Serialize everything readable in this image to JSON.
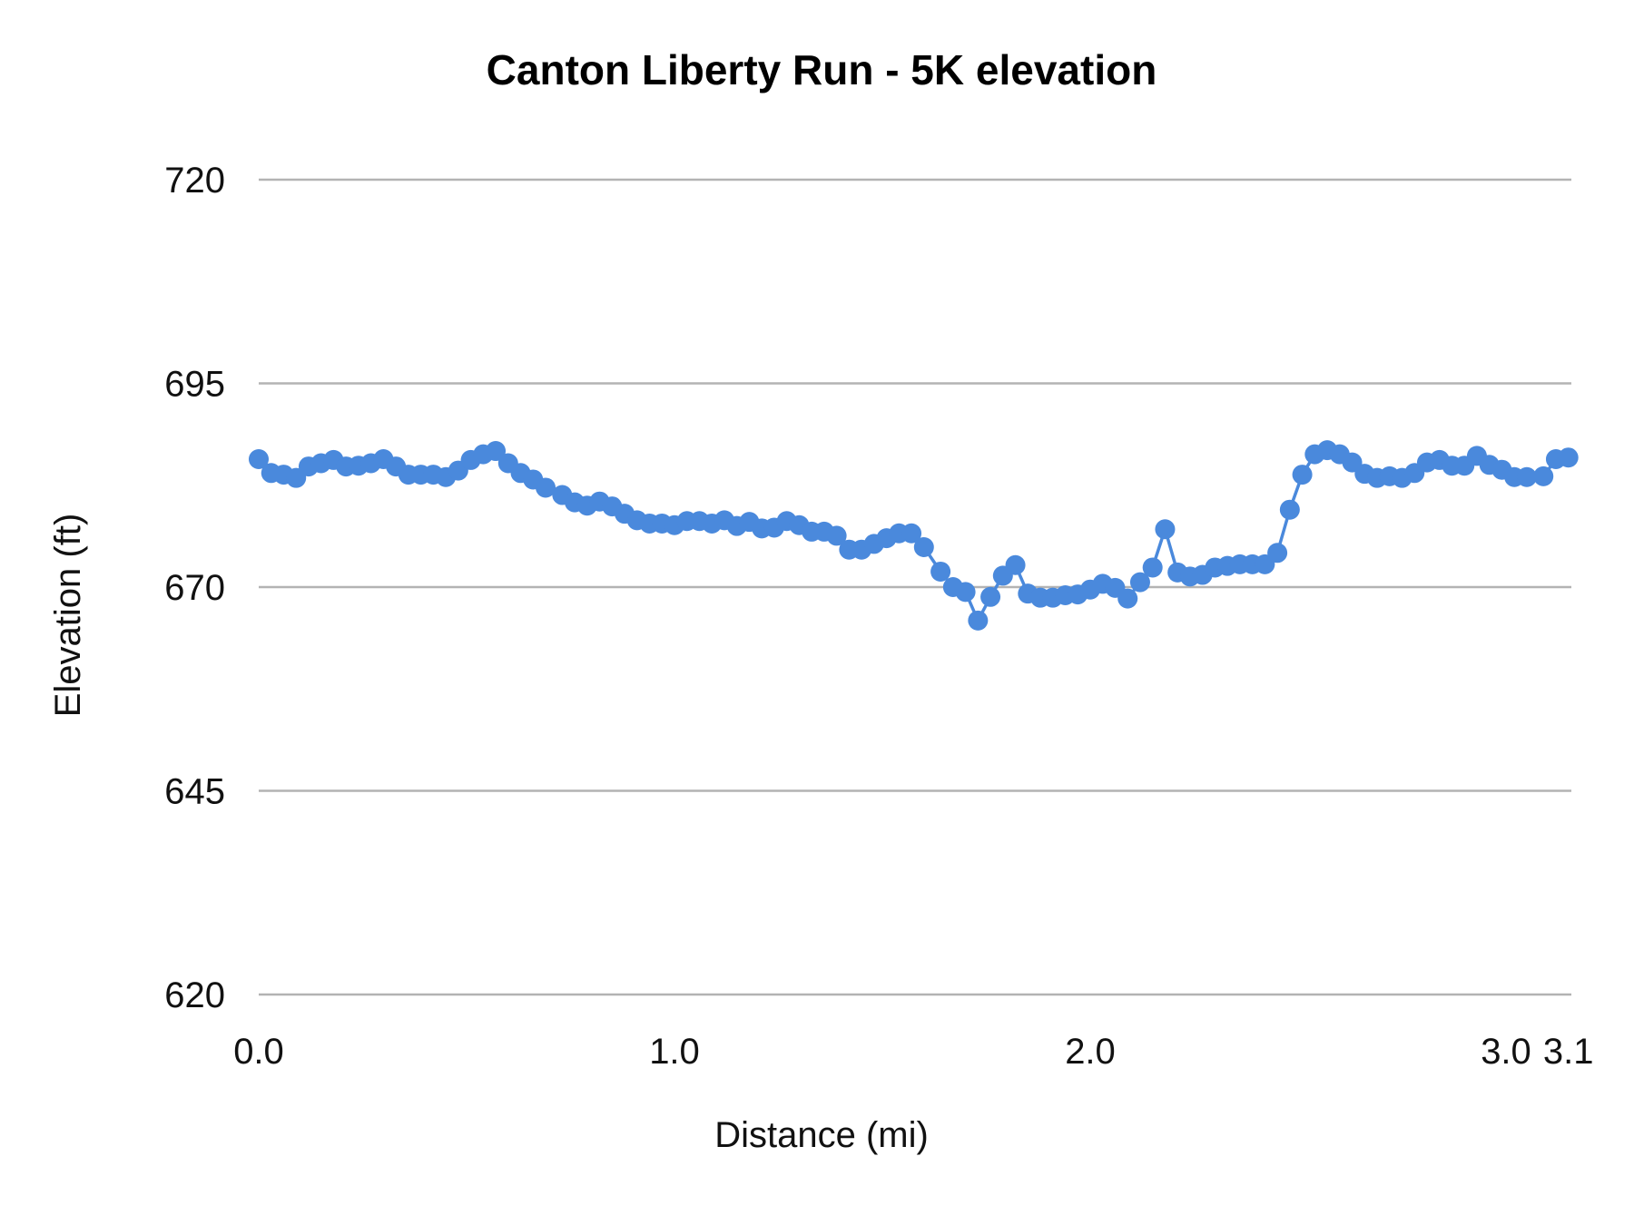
{
  "chart_data": {
    "type": "line",
    "title": "Canton Liberty Run - 5K elevation",
    "xlabel": "Distance (mi)",
    "ylabel": "Elevation (ft)",
    "xlim": [
      0,
      3.16
    ],
    "ylim": [
      620,
      720
    ],
    "x_ticks": [
      "0.0",
      "1.0",
      "2.0",
      "3.0",
      "3.1"
    ],
    "x_tick_values": [
      0,
      1,
      2,
      3,
      3.15
    ],
    "y_ticks": [
      "720",
      "695",
      "670",
      "645",
      "620"
    ],
    "y_tick_values": [
      720,
      695,
      670,
      645,
      620
    ],
    "grid": true,
    "markers": true,
    "color": "#4a89dc",
    "series": [
      {
        "x": [
          0.0,
          0.03,
          0.06,
          0.09,
          0.12,
          0.15,
          0.18,
          0.21,
          0.24,
          0.27,
          0.3,
          0.33,
          0.36,
          0.39,
          0.42,
          0.45,
          0.48,
          0.51,
          0.54,
          0.57,
          0.6,
          0.63,
          0.66,
          0.69,
          0.73,
          0.76,
          0.79,
          0.82,
          0.85,
          0.88,
          0.91,
          0.94,
          0.97,
          1.0,
          1.03,
          1.06,
          1.09,
          1.12,
          1.15,
          1.18,
          1.21,
          1.24,
          1.27,
          1.3,
          1.33,
          1.36,
          1.39,
          1.42,
          1.45,
          1.48,
          1.51,
          1.54,
          1.57,
          1.6,
          1.64,
          1.67,
          1.7,
          1.73,
          1.76,
          1.79,
          1.82,
          1.85,
          1.88,
          1.91,
          1.94,
          1.97,
          2.0,
          2.03,
          2.06,
          2.09,
          2.12,
          2.15,
          2.18,
          2.21,
          2.24,
          2.27,
          2.3,
          2.33,
          2.36,
          2.39,
          2.42,
          2.45,
          2.48,
          2.51,
          2.54,
          2.57,
          2.6,
          2.63,
          2.66,
          2.69,
          2.72,
          2.75,
          2.78,
          2.81,
          2.84,
          2.87,
          2.9,
          2.93,
          2.96,
          2.99,
          3.02,
          3.05,
          3.09,
          3.12,
          3.15
        ],
        "y": [
          685.7,
          684.0,
          683.8,
          683.4,
          684.8,
          685.2,
          685.6,
          684.8,
          684.9,
          685.2,
          685.7,
          684.8,
          683.8,
          683.8,
          683.8,
          683.5,
          684.3,
          685.6,
          686.3,
          686.7,
          685.2,
          684.0,
          683.2,
          682.2,
          681.3,
          680.4,
          680.0,
          680.5,
          679.9,
          679.0,
          678.2,
          677.8,
          677.8,
          677.6,
          678.1,
          678.1,
          677.8,
          678.2,
          677.5,
          678.0,
          677.2,
          677.3,
          678.1,
          677.6,
          676.8,
          676.8,
          676.3,
          674.6,
          674.6,
          675.3,
          676.0,
          676.6,
          676.6,
          674.9,
          671.9,
          670.0,
          669.4,
          665.9,
          668.8,
          671.4,
          672.7,
          669.2,
          668.7,
          668.7,
          669.0,
          669.1,
          669.7,
          670.4,
          669.9,
          668.6,
          670.6,
          672.4,
          677.1,
          671.8,
          671.3,
          671.5,
          672.4,
          672.6,
          672.8,
          672.8,
          672.8,
          674.2,
          679.5,
          683.8,
          686.3,
          686.8,
          686.3,
          685.3,
          683.9,
          683.4,
          683.6,
          683.4,
          684.0,
          685.3,
          685.6,
          684.9,
          684.9,
          686.1,
          685.0,
          684.4,
          683.5,
          683.5,
          683.6,
          685.7,
          685.9
        ]
      }
    ]
  }
}
